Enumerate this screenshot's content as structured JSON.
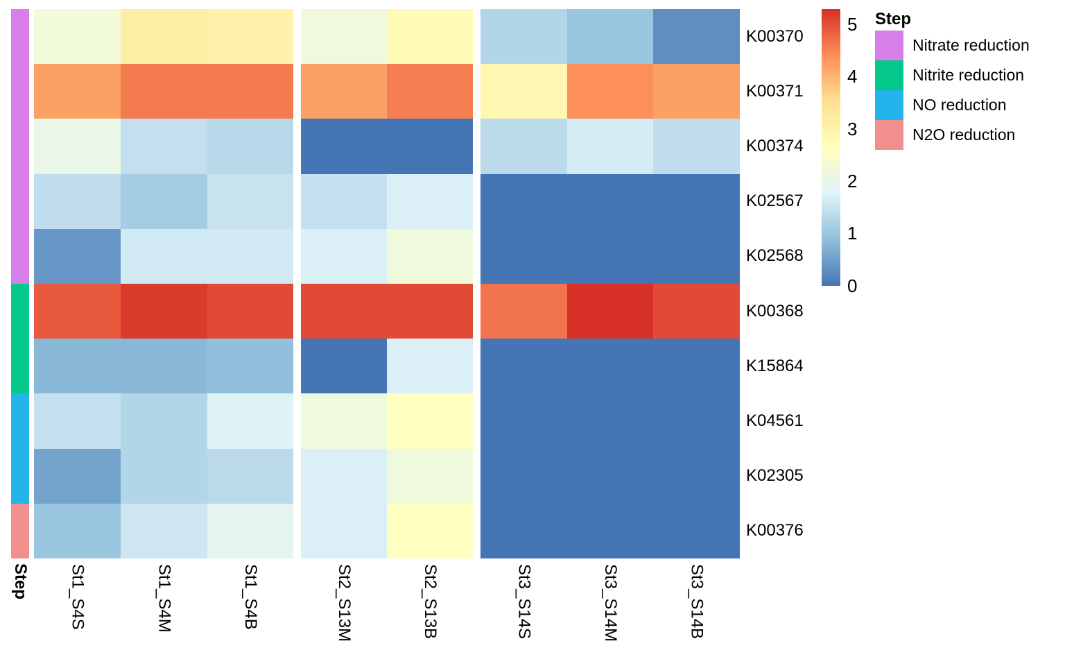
{
  "chart_data": {
    "type": "heatmap",
    "rows": [
      "K00370",
      "K00371",
      "K00374",
      "K02567",
      "K02568",
      "K00368",
      "K15864",
      "K04561",
      "K02305",
      "K00376"
    ],
    "row_steps": [
      "Nitrate reduction",
      "Nitrate reduction",
      "Nitrate reduction",
      "Nitrate reduction",
      "Nitrate reduction",
      "Nitrite reduction",
      "Nitrite reduction",
      "NO reduction",
      "NO reduction",
      "N2O reduction"
    ],
    "columns": [
      "St1_S4S",
      "St1_S4M",
      "St1_S4B",
      "St2_S13M",
      "St2_S13B",
      "St3_S14S",
      "St3_S14M",
      "St3_S14B"
    ],
    "column_groups": [
      "St1",
      "St1",
      "St1",
      "St2",
      "St2",
      "St3",
      "St3",
      "St3"
    ],
    "values": [
      [
        2.25,
        3.1,
        3.0,
        2.2,
        2.8,
        1.25,
        1.0,
        0.3
      ],
      [
        4.2,
        4.6,
        4.6,
        4.2,
        4.55,
        2.9,
        4.4,
        4.2
      ],
      [
        2.05,
        1.45,
        1.3,
        0.0,
        0.0,
        1.35,
        1.65,
        1.4
      ],
      [
        1.4,
        1.1,
        1.5,
        1.45,
        1.7,
        0.0,
        0.0,
        0.0
      ],
      [
        0.4,
        1.6,
        1.6,
        1.7,
        2.2,
        0.0,
        0.0,
        0.0
      ],
      [
        4.9,
        5.2,
        5.05,
        5.05,
        5.05,
        4.65,
        5.3,
        5.05
      ],
      [
        0.8,
        0.8,
        0.9,
        0.0,
        1.7,
        0.0,
        0.0,
        0.0
      ],
      [
        1.45,
        1.25,
        1.75,
        2.2,
        2.65,
        0.0,
        0.0,
        0.0
      ],
      [
        0.55,
        1.25,
        1.35,
        1.7,
        2.2,
        0.0,
        0.0,
        0.0
      ],
      [
        1.0,
        1.55,
        1.9,
        1.7,
        2.65,
        0.0,
        0.0,
        0.0
      ]
    ],
    "vmin": 0,
    "vmax": 5.3,
    "colorbar_ticks": [
      5,
      4,
      3,
      2,
      1,
      0
    ],
    "color_ramp": [
      "#4575b4",
      "#91bfdb",
      "#e0f3f8",
      "#ffffbf",
      "#fee090",
      "#fc8d59",
      "#d73027"
    ],
    "annotation_axis_label": "Step",
    "legend": {
      "title": "Step",
      "items": [
        {
          "label": "Nitrate reduction",
          "color": "#d77ee8"
        },
        {
          "label": "Nitrite reduction",
          "color": "#04c78c"
        },
        {
          "label": "NO reduction",
          "color": "#22b4ea"
        },
        {
          "label": "N2O reduction",
          "color": "#f08f8e"
        }
      ]
    },
    "background": "#ffffff"
  }
}
